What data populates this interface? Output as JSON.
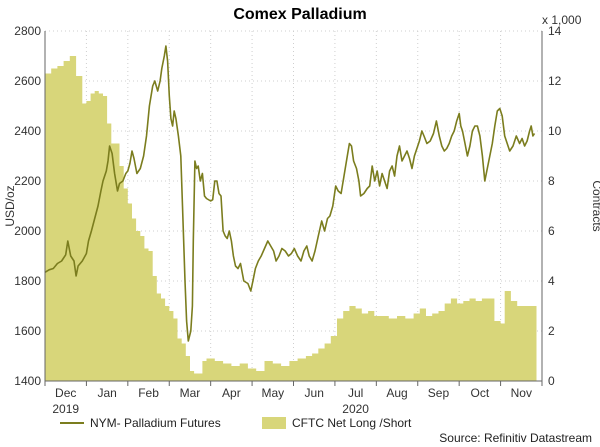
{
  "chart_data": {
    "type": "line",
    "title": "Comex Palladium",
    "ylabel_left": "USD/oz",
    "ylabel_right": "Contracts",
    "right_multiplier_label": "x 1,000",
    "source": "Source: Refinitiv Datastream",
    "y_left_range": [
      1400,
      2800
    ],
    "y_left_ticks": [
      1400,
      1600,
      1800,
      2000,
      2200,
      2400,
      2600,
      2800
    ],
    "y_right_range": [
      0,
      14
    ],
    "y_right_ticks": [
      0,
      2,
      4,
      6,
      8,
      10,
      12,
      14
    ],
    "x_range_month_index": [
      0,
      12
    ],
    "month_ticks": [
      "Dec",
      "Jan",
      "Feb",
      "Mar",
      "Apr",
      "May",
      "Jun",
      "Jul",
      "Aug",
      "Sep",
      "Oct",
      "Nov"
    ],
    "year_labels": [
      {
        "label": "2019",
        "month_index": 0.5
      },
      {
        "label": "2020",
        "month_index": 7.5
      }
    ],
    "grid": true,
    "series": [
      {
        "name": "NYM- Palladium Futures",
        "type": "line",
        "axis": "left",
        "color": "#7b7d1e",
        "points": [
          [
            0.0,
            1835
          ],
          [
            0.1,
            1845
          ],
          [
            0.2,
            1850
          ],
          [
            0.3,
            1870
          ],
          [
            0.4,
            1880
          ],
          [
            0.5,
            1905
          ],
          [
            0.55,
            1960
          ],
          [
            0.62,
            1900
          ],
          [
            0.7,
            1880
          ],
          [
            0.75,
            1820
          ],
          [
            0.8,
            1860
          ],
          [
            0.9,
            1880
          ],
          [
            1.0,
            1910
          ],
          [
            1.05,
            1960
          ],
          [
            1.12,
            2000
          ],
          [
            1.2,
            2050
          ],
          [
            1.28,
            2100
          ],
          [
            1.35,
            2160
          ],
          [
            1.4,
            2200
          ],
          [
            1.48,
            2240
          ],
          [
            1.52,
            2280
          ],
          [
            1.56,
            2340
          ],
          [
            1.62,
            2310
          ],
          [
            1.68,
            2230
          ],
          [
            1.75,
            2160
          ],
          [
            1.8,
            2190
          ],
          [
            1.88,
            2200
          ],
          [
            1.95,
            2230
          ],
          [
            2.0,
            2240
          ],
          [
            2.05,
            2270
          ],
          [
            2.1,
            2320
          ],
          [
            2.15,
            2290
          ],
          [
            2.22,
            2230
          ],
          [
            2.3,
            2250
          ],
          [
            2.38,
            2300
          ],
          [
            2.45,
            2380
          ],
          [
            2.52,
            2500
          ],
          [
            2.6,
            2580
          ],
          [
            2.65,
            2600
          ],
          [
            2.72,
            2560
          ],
          [
            2.78,
            2600
          ],
          [
            2.82,
            2650
          ],
          [
            2.88,
            2700
          ],
          [
            2.92,
            2740
          ],
          [
            2.96,
            2680
          ],
          [
            3.0,
            2540
          ],
          [
            3.04,
            2450
          ],
          [
            3.08,
            2420
          ],
          [
            3.12,
            2480
          ],
          [
            3.16,
            2450
          ],
          [
            3.22,
            2380
          ],
          [
            3.28,
            2300
          ],
          [
            3.32,
            2100
          ],
          [
            3.38,
            1800
          ],
          [
            3.42,
            1640
          ],
          [
            3.46,
            1560
          ],
          [
            3.52,
            1600
          ],
          [
            3.56,
            1700
          ],
          [
            3.58,
            1960
          ],
          [
            3.62,
            2280
          ],
          [
            3.66,
            2250
          ],
          [
            3.7,
            2260
          ],
          [
            3.75,
            2200
          ],
          [
            3.8,
            2230
          ],
          [
            3.85,
            2140
          ],
          [
            3.9,
            2130
          ],
          [
            4.0,
            2120
          ],
          [
            4.05,
            2125
          ],
          [
            4.1,
            2200
          ],
          [
            4.15,
            2200
          ],
          [
            4.2,
            2150
          ],
          [
            4.25,
            2140
          ],
          [
            4.3,
            2000
          ],
          [
            4.35,
            1980
          ],
          [
            4.4,
            1970
          ],
          [
            4.45,
            2000
          ],
          [
            4.5,
            1960
          ],
          [
            4.55,
            1900
          ],
          [
            4.6,
            1860
          ],
          [
            4.66,
            1850
          ],
          [
            4.72,
            1870
          ],
          [
            4.8,
            1800
          ],
          [
            4.9,
            1790
          ],
          [
            4.97,
            1760
          ],
          [
            5.02,
            1800
          ],
          [
            5.08,
            1850
          ],
          [
            5.15,
            1880
          ],
          [
            5.22,
            1900
          ],
          [
            5.3,
            1930
          ],
          [
            5.38,
            1960
          ],
          [
            5.45,
            1940
          ],
          [
            5.52,
            1920
          ],
          [
            5.58,
            1880
          ],
          [
            5.65,
            1900
          ],
          [
            5.72,
            1930
          ],
          [
            5.8,
            1920
          ],
          [
            5.88,
            1900
          ],
          [
            5.95,
            1910
          ],
          [
            6.02,
            1930
          ],
          [
            6.1,
            1900
          ],
          [
            6.18,
            1880
          ],
          [
            6.25,
            1920
          ],
          [
            6.32,
            1940
          ],
          [
            6.38,
            1900
          ],
          [
            6.45,
            1880
          ],
          [
            6.52,
            1920
          ],
          [
            6.6,
            1980
          ],
          [
            6.68,
            2040
          ],
          [
            6.75,
            2000
          ],
          [
            6.82,
            2050
          ],
          [
            6.88,
            2060
          ],
          [
            6.95,
            2100
          ],
          [
            7.02,
            2180
          ],
          [
            7.08,
            2160
          ],
          [
            7.15,
            2150
          ],
          [
            7.22,
            2220
          ],
          [
            7.3,
            2300
          ],
          [
            7.35,
            2350
          ],
          [
            7.4,
            2340
          ],
          [
            7.45,
            2280
          ],
          [
            7.52,
            2250
          ],
          [
            7.58,
            2200
          ],
          [
            7.62,
            2140
          ],
          [
            7.7,
            2150
          ],
          [
            7.78,
            2170
          ],
          [
            7.84,
            2180
          ],
          [
            7.9,
            2260
          ],
          [
            7.96,
            2200
          ],
          [
            8.02,
            2240
          ],
          [
            8.08,
            2180
          ],
          [
            8.14,
            2230
          ],
          [
            8.2,
            2200
          ],
          [
            8.26,
            2170
          ],
          [
            8.32,
            2240
          ],
          [
            8.38,
            2260
          ],
          [
            8.44,
            2220
          ],
          [
            8.5,
            2300
          ],
          [
            8.56,
            2340
          ],
          [
            8.62,
            2280
          ],
          [
            8.68,
            2300
          ],
          [
            8.74,
            2320
          ],
          [
            8.8,
            2290
          ],
          [
            8.86,
            2250
          ],
          [
            8.92,
            2300
          ],
          [
            8.98,
            2330
          ],
          [
            9.04,
            2360
          ],
          [
            9.1,
            2400
          ],
          [
            9.15,
            2380
          ],
          [
            9.22,
            2350
          ],
          [
            9.3,
            2360
          ],
          [
            9.38,
            2390
          ],
          [
            9.45,
            2440
          ],
          [
            9.52,
            2380
          ],
          [
            9.58,
            2340
          ],
          [
            9.64,
            2320
          ],
          [
            9.7,
            2330
          ],
          [
            9.76,
            2350
          ],
          [
            9.82,
            2380
          ],
          [
            9.88,
            2400
          ],
          [
            9.94,
            2440
          ],
          [
            10.0,
            2470
          ],
          [
            10.04,
            2420
          ],
          [
            10.08,
            2400
          ],
          [
            10.14,
            2350
          ],
          [
            10.2,
            2300
          ],
          [
            10.26,
            2340
          ],
          [
            10.32,
            2400
          ],
          [
            10.38,
            2420
          ],
          [
            10.44,
            2420
          ],
          [
            10.5,
            2380
          ],
          [
            10.56,
            2300
          ],
          [
            10.62,
            2200
          ],
          [
            10.68,
            2250
          ],
          [
            10.74,
            2300
          ],
          [
            10.8,
            2350
          ],
          [
            10.86,
            2420
          ],
          [
            10.92,
            2480
          ],
          [
            10.98,
            2490
          ],
          [
            11.04,
            2460
          ],
          [
            11.1,
            2380
          ],
          [
            11.16,
            2350
          ],
          [
            11.22,
            2320
          ],
          [
            11.3,
            2340
          ],
          [
            11.38,
            2380
          ],
          [
            11.46,
            2350
          ],
          [
            11.52,
            2370
          ],
          [
            11.58,
            2340
          ],
          [
            11.64,
            2360
          ],
          [
            11.7,
            2400
          ],
          [
            11.74,
            2420
          ],
          [
            11.78,
            2380
          ],
          [
            11.82,
            2390
          ]
        ]
      },
      {
        "name": "CFTC Net Long /Short",
        "type": "area_step",
        "axis": "right",
        "color": "#d8d67a",
        "points": [
          [
            0.0,
            12.3
          ],
          [
            0.15,
            12.5
          ],
          [
            0.3,
            12.6
          ],
          [
            0.45,
            12.8
          ],
          [
            0.6,
            13.0
          ],
          [
            0.75,
            12.2
          ],
          [
            0.9,
            11.1
          ],
          [
            1.0,
            11.2
          ],
          [
            1.1,
            11.5
          ],
          [
            1.2,
            11.6
          ],
          [
            1.3,
            11.5
          ],
          [
            1.4,
            11.4
          ],
          [
            1.5,
            10.3
          ],
          [
            1.6,
            9.5
          ],
          [
            1.7,
            9.5
          ],
          [
            1.8,
            8.6
          ],
          [
            1.9,
            7.7
          ],
          [
            2.0,
            7.1
          ],
          [
            2.1,
            6.5
          ],
          [
            2.2,
            6.0
          ],
          [
            2.3,
            5.8
          ],
          [
            2.4,
            5.3
          ],
          [
            2.5,
            5.2
          ],
          [
            2.6,
            4.2
          ],
          [
            2.7,
            3.5
          ],
          [
            2.8,
            3.3
          ],
          [
            2.9,
            3.0
          ],
          [
            3.0,
            2.8
          ],
          [
            3.1,
            2.5
          ],
          [
            3.2,
            1.7
          ],
          [
            3.3,
            1.5
          ],
          [
            3.4,
            1.0
          ],
          [
            3.5,
            0.4
          ],
          [
            3.6,
            0.3
          ],
          [
            3.7,
            0.3
          ],
          [
            3.8,
            0.8
          ],
          [
            3.9,
            0.9
          ],
          [
            4.1,
            0.8
          ],
          [
            4.3,
            0.7
          ],
          [
            4.5,
            0.6
          ],
          [
            4.7,
            0.7
          ],
          [
            4.9,
            0.5
          ],
          [
            5.1,
            0.4
          ],
          [
            5.3,
            0.8
          ],
          [
            5.5,
            0.7
          ],
          [
            5.7,
            0.6
          ],
          [
            5.9,
            0.8
          ],
          [
            6.1,
            0.9
          ],
          [
            6.3,
            1.0
          ],
          [
            6.45,
            1.1
          ],
          [
            6.6,
            1.3
          ],
          [
            6.75,
            1.5
          ],
          [
            6.9,
            1.8
          ],
          [
            7.05,
            2.5
          ],
          [
            7.2,
            2.8
          ],
          [
            7.35,
            3.0
          ],
          [
            7.5,
            2.9
          ],
          [
            7.65,
            2.7
          ],
          [
            7.8,
            2.8
          ],
          [
            7.95,
            2.6
          ],
          [
            8.1,
            2.6
          ],
          [
            8.3,
            2.5
          ],
          [
            8.5,
            2.6
          ],
          [
            8.7,
            2.5
          ],
          [
            8.9,
            2.7
          ],
          [
            9.05,
            2.9
          ],
          [
            9.2,
            2.6
          ],
          [
            9.35,
            2.7
          ],
          [
            9.5,
            2.8
          ],
          [
            9.65,
            3.1
          ],
          [
            9.8,
            3.3
          ],
          [
            9.95,
            3.1
          ],
          [
            10.1,
            3.2
          ],
          [
            10.25,
            3.3
          ],
          [
            10.4,
            3.2
          ],
          [
            10.55,
            3.3
          ],
          [
            10.7,
            3.3
          ],
          [
            10.85,
            2.4
          ],
          [
            11.0,
            2.3
          ],
          [
            11.1,
            3.6
          ],
          [
            11.25,
            3.2
          ],
          [
            11.4,
            3.0
          ],
          [
            11.6,
            3.0
          ],
          [
            11.82,
            3.0
          ]
        ]
      }
    ],
    "legend_position": "bottom-left"
  }
}
